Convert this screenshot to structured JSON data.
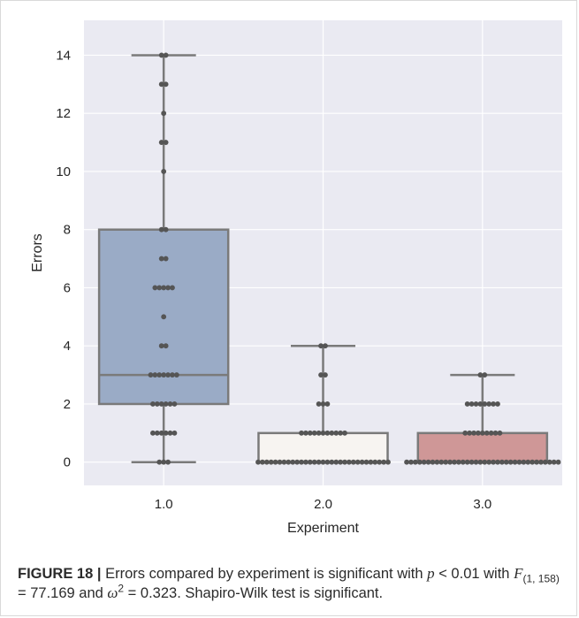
{
  "chart_data": {
    "type": "box",
    "xlabel": "Experiment",
    "ylabel": "Errors",
    "categories": [
      "1.0",
      "2.0",
      "3.0"
    ],
    "ylim": [
      -0.8,
      15.2
    ],
    "yticks": [
      0,
      2,
      4,
      6,
      8,
      10,
      12,
      14
    ],
    "grid": true,
    "boxes": [
      {
        "category": "1.0",
        "whisker_low": 0,
        "q1": 2,
        "median": 3,
        "q3": 8,
        "whisker_high": 14,
        "color": "#9aabc6"
      },
      {
        "category": "2.0",
        "whisker_low": 0,
        "q1": 0,
        "median": 0,
        "q3": 1,
        "whisker_high": 4,
        "color": "#f7f4f1"
      },
      {
        "category": "3.0",
        "whisker_low": 0,
        "q1": 0,
        "median": 0,
        "q3": 1,
        "whisker_high": 3,
        "color": "#cf9797"
      }
    ],
    "swarm_counts": [
      {
        "category": "1.0",
        "counts": {
          "0": 3,
          "1": 6,
          "2": 6,
          "3": 7,
          "4": 2,
          "5": 1,
          "6": 5,
          "7": 2,
          "8": 2,
          "10": 1,
          "11": 2,
          "12": 1,
          "13": 2,
          "14": 2
        }
      },
      {
        "category": "2.0",
        "counts": {
          "0": 31,
          "1": 11,
          "2": 3,
          "3": 2,
          "4": 2
        }
      },
      {
        "category": "3.0",
        "counts": {
          "0": 36,
          "1": 9,
          "2": 8,
          "3": 2
        }
      }
    ],
    "colors": {
      "plot_bg": "#eaeaf2",
      "grid": "#ffffff",
      "box_edge": "#7a7a7a",
      "point": "#555555"
    }
  },
  "caption": {
    "label": "FIGURE 18 |",
    "t1": " Errors compared by experiment is significant with ",
    "p": "p",
    "t2": " < 0.01 with",
    "F": "F",
    "F_sub": "(1, 158)",
    "t3": " = 77.169 and ",
    "omega": "ω",
    "omega_sup": "2",
    "t4": " = 0.323. Shapiro-Wilk test is significant."
  }
}
